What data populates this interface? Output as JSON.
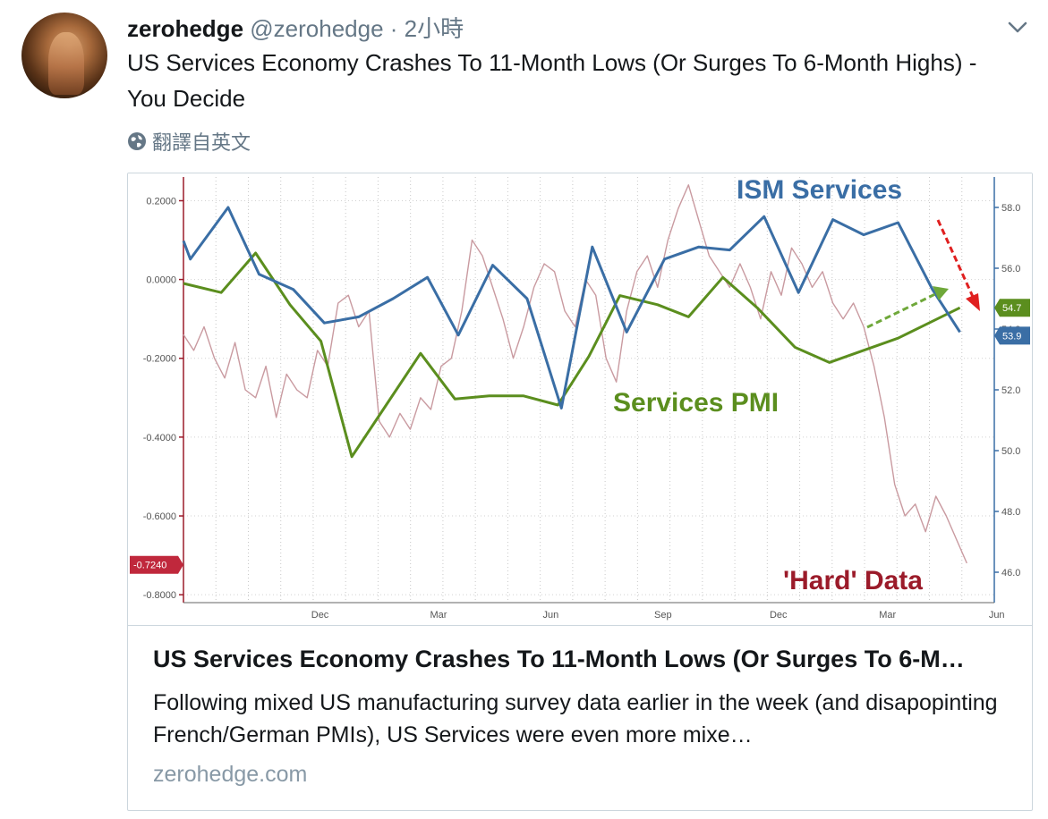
{
  "tweet": {
    "display_name": "zerohedge",
    "handle": "@zerohedge",
    "time": "· 2小時",
    "text": "US Services Economy Crashes To 11-Month Lows (Or Surges To 6-Month Highs) - You Decide",
    "translate_label": "翻譯自英文"
  },
  "card": {
    "title": "US Services Economy Crashes To 11-Month Lows (Or Surges To 6-M…",
    "description": "Following mixed US manufacturing survey data earlier in the week (and disapopinting French/German PMIs), US Services were even more mixe…",
    "domain": "zerohedge.com"
  },
  "icons": {
    "avatar": "avatar-image",
    "chevron": "chevron-down-icon",
    "globe": "globe-icon"
  },
  "colors": {
    "ism": "#3a6ea5",
    "pmi": "#5b8e1e",
    "hard": "#c99aa0",
    "hard_label": "#9b1b2a",
    "arrow_red": "#e02020",
    "arrow_green": "#6fa83a"
  },
  "chart_data": {
    "type": "line",
    "annotations": {
      "ism": "ISM Services",
      "pmi": "Services PMI",
      "hard": "'Hard' Data"
    },
    "x_ticks": [
      "Dec",
      "Mar",
      "Jun",
      "Sep",
      "Dec",
      "Mar",
      "Jun"
    ],
    "left_axis": {
      "ticks": [
        0.2,
        0.0,
        -0.2,
        -0.4,
        -0.6,
        -0.8
      ],
      "tick_labels": [
        "0.2000",
        "0.0000",
        "-0.2000",
        "-0.4000",
        "-0.6000",
        "-0.8000"
      ],
      "ylim": [
        -0.82,
        0.26
      ],
      "last_label": "-0.7240"
    },
    "right_axis": {
      "ticks": [
        58,
        56,
        54,
        52,
        50,
        48,
        46
      ],
      "tick_labels": [
        "58.0",
        "56.0",
        "54.0",
        "52.0",
        "50.0",
        "48.0",
        "46.0"
      ],
      "ylim": [
        45,
        59
      ],
      "end_labels": [
        "54.7",
        "53.9"
      ]
    },
    "x_range": [
      0,
      23.6
    ],
    "series": [
      {
        "key": "ism",
        "x": [
          0,
          0.2,
          1.3,
          2.2,
          3.2,
          4.1,
          5.1,
          6.1,
          7.1,
          8.0,
          9.0,
          10.0,
          11.0,
          11.9,
          12.9,
          14.0,
          15.0,
          15.9,
          16.9,
          17.9,
          18.9,
          19.8,
          20.8,
          21.8,
          22.6
        ],
        "y": [
          56.9,
          56.3,
          58.0,
          55.8,
          55.3,
          54.2,
          54.4,
          55.0,
          55.7,
          53.8,
          56.1,
          55.0,
          51.4,
          56.7,
          53.9,
          56.3,
          56.7,
          56.6,
          57.7,
          55.2,
          57.6,
          57.1,
          57.5,
          55.3,
          53.9
        ]
      },
      {
        "key": "pmi",
        "x": [
          0,
          1.1,
          2.1,
          3.1,
          4.0,
          4.9,
          5.9,
          6.9,
          7.9,
          8.9,
          9.9,
          10.9,
          11.8,
          12.7,
          13.8,
          14.7,
          15.7,
          16.7,
          17.8,
          18.8,
          19.8,
          20.8,
          21.7,
          22.6
        ],
        "y": [
          55.5,
          55.2,
          56.5,
          54.8,
          53.6,
          49.8,
          51.5,
          53.2,
          51.7,
          51.8,
          51.8,
          51.5,
          53.1,
          55.1,
          54.8,
          54.4,
          55.7,
          54.7,
          53.4,
          52.9,
          53.3,
          53.7,
          54.2,
          54.7
        ]
      },
      {
        "key": "hard",
        "x": [
          0,
          0.3,
          0.6,
          0.9,
          1.2,
          1.5,
          1.8,
          2.1,
          2.4,
          2.7,
          3.0,
          3.3,
          3.6,
          3.9,
          4.2,
          4.5,
          4.8,
          5.1,
          5.4,
          5.7,
          6.0,
          6.3,
          6.6,
          6.9,
          7.2,
          7.5,
          7.8,
          8.1,
          8.4,
          8.7,
          9.0,
          9.3,
          9.6,
          9.9,
          10.2,
          10.5,
          10.8,
          11.1,
          11.4,
          11.7,
          12.0,
          12.3,
          12.6,
          12.9,
          13.2,
          13.5,
          13.8,
          14.1,
          14.4,
          14.7,
          15.0,
          15.3,
          15.6,
          15.9,
          16.2,
          16.5,
          16.8,
          17.1,
          17.4,
          17.7,
          18.0,
          18.3,
          18.6,
          18.9,
          19.2,
          19.5,
          19.8,
          20.1,
          20.4,
          20.7,
          21.0,
          21.3,
          21.6,
          21.9,
          22.2,
          22.5,
          22.8
        ],
        "y": [
          -0.14,
          -0.18,
          -0.12,
          -0.2,
          -0.25,
          -0.16,
          -0.28,
          -0.3,
          -0.22,
          -0.35,
          -0.24,
          -0.28,
          -0.3,
          -0.18,
          -0.22,
          -0.06,
          -0.04,
          -0.12,
          -0.08,
          -0.36,
          -0.4,
          -0.34,
          -0.38,
          -0.3,
          -0.33,
          -0.22,
          -0.2,
          -0.08,
          0.1,
          0.06,
          -0.02,
          -0.1,
          -0.2,
          -0.12,
          -0.02,
          0.04,
          0.02,
          -0.08,
          -0.12,
          0.0,
          -0.04,
          -0.2,
          -0.26,
          -0.08,
          0.02,
          0.06,
          -0.02,
          0.1,
          0.18,
          0.24,
          0.15,
          0.06,
          0.02,
          -0.02,
          0.04,
          -0.02,
          -0.1,
          0.02,
          -0.04,
          0.08,
          0.04,
          -0.02,
          0.02,
          -0.06,
          -0.1,
          -0.06,
          -0.12,
          -0.22,
          -0.35,
          -0.52,
          -0.6,
          -0.57,
          -0.64,
          -0.55,
          -0.6,
          -0.66,
          -0.72
        ]
      }
    ]
  }
}
